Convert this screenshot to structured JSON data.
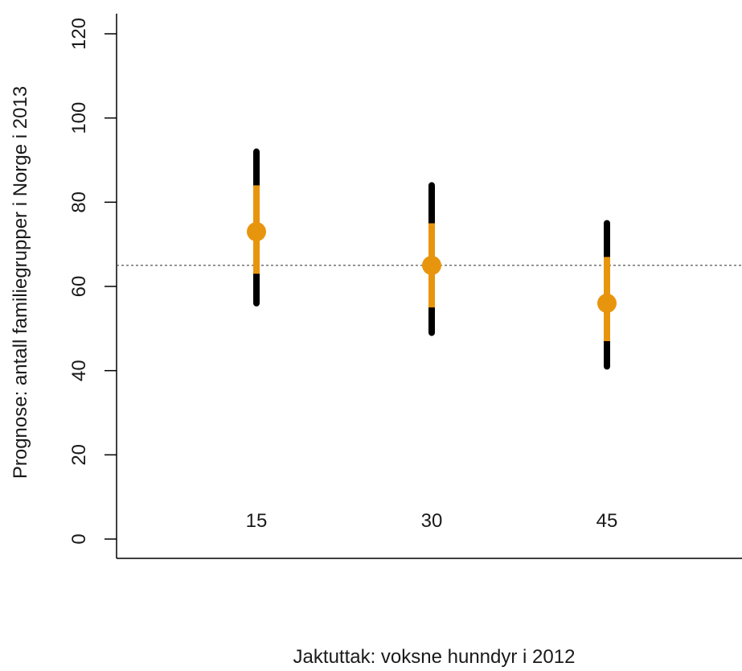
{
  "chart_data": {
    "type": "scatter",
    "title": "",
    "xlabel": "Jaktuttak: voksne hunndyr i 2012",
    "ylabel": "Prognose: antall familiegrupper i Norge i 2013",
    "ylim": [
      0,
      120
    ],
    "yticks": [
      "0",
      "20",
      "40",
      "60",
      "80",
      "100",
      "120"
    ],
    "categories": [
      "15",
      "30",
      "45"
    ],
    "points": [
      {
        "category": "15",
        "value": 73,
        "inner": [
          63,
          84
        ],
        "outer": [
          56,
          92
        ]
      },
      {
        "category": "30",
        "value": 65,
        "inner": [
          55,
          75
        ],
        "outer": [
          49,
          84
        ]
      },
      {
        "category": "45",
        "value": 56,
        "inner": [
          47,
          67
        ],
        "outer": [
          41,
          75
        ]
      }
    ],
    "reference_line": 65,
    "grid": false,
    "legend": "none",
    "colors": {
      "point": "#e8950e",
      "outer_interval": "#000000",
      "reference_line": "#444444"
    }
  }
}
